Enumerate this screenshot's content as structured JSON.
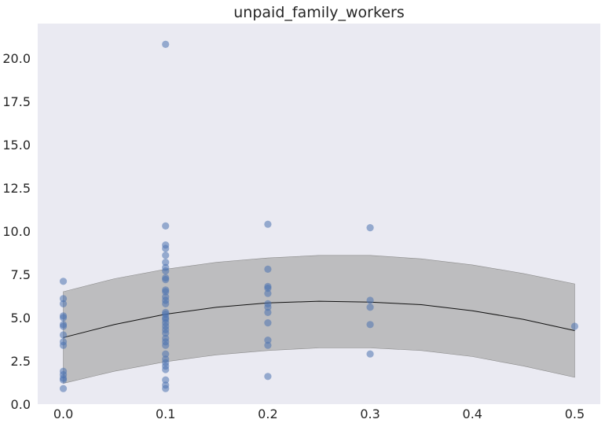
{
  "chart_data": {
    "type": "scatter",
    "title": "unpaid_family_workers",
    "xlabel": "",
    "ylabel": "",
    "xlim": [
      -0.025,
      0.525
    ],
    "ylim": [
      0,
      22
    ],
    "xticks": [
      0.0,
      0.1,
      0.2,
      0.3,
      0.4,
      0.5
    ],
    "xtick_labels": [
      "0.0",
      "0.1",
      "0.2",
      "0.3",
      "0.4",
      "0.5"
    ],
    "yticks": [
      0.0,
      2.5,
      5.0,
      7.5,
      10.0,
      12.5,
      15.0,
      17.5,
      20.0
    ],
    "ytick_labels": [
      "0.0",
      "2.5",
      "5.0",
      "7.5",
      "10.0",
      "12.5",
      "15.0",
      "17.5",
      "20.0"
    ],
    "grid": false,
    "points": [
      [
        0.0,
        7.1
      ],
      [
        0.0,
        6.1
      ],
      [
        0.0,
        5.8
      ],
      [
        0.0,
        5.1
      ],
      [
        0.0,
        5.0
      ],
      [
        0.0,
        4.6
      ],
      [
        0.0,
        4.5
      ],
      [
        0.0,
        4.0
      ],
      [
        0.0,
        3.6
      ],
      [
        0.0,
        3.4
      ],
      [
        0.0,
        1.9
      ],
      [
        0.0,
        1.7
      ],
      [
        0.0,
        1.5
      ],
      [
        0.0,
        1.4
      ],
      [
        0.0,
        0.9
      ],
      [
        0.1,
        20.8
      ],
      [
        0.1,
        10.3
      ],
      [
        0.1,
        9.2
      ],
      [
        0.1,
        9.0
      ],
      [
        0.1,
        8.6
      ],
      [
        0.1,
        8.2
      ],
      [
        0.1,
        7.9
      ],
      [
        0.1,
        7.7
      ],
      [
        0.1,
        7.3
      ],
      [
        0.1,
        7.2
      ],
      [
        0.1,
        6.6
      ],
      [
        0.1,
        6.5
      ],
      [
        0.1,
        6.2
      ],
      [
        0.1,
        6.0
      ],
      [
        0.1,
        5.8
      ],
      [
        0.1,
        5.3
      ],
      [
        0.1,
        5.2
      ],
      [
        0.1,
        5.0
      ],
      [
        0.1,
        4.9
      ],
      [
        0.1,
        4.7
      ],
      [
        0.1,
        4.5
      ],
      [
        0.1,
        4.3
      ],
      [
        0.1,
        4.1
      ],
      [
        0.1,
        3.8
      ],
      [
        0.1,
        3.6
      ],
      [
        0.1,
        3.4
      ],
      [
        0.1,
        2.9
      ],
      [
        0.1,
        2.6
      ],
      [
        0.1,
        2.4
      ],
      [
        0.1,
        2.2
      ],
      [
        0.1,
        2.0
      ],
      [
        0.1,
        1.4
      ],
      [
        0.1,
        1.1
      ],
      [
        0.1,
        0.9
      ],
      [
        0.2,
        10.4
      ],
      [
        0.2,
        7.8
      ],
      [
        0.2,
        6.8
      ],
      [
        0.2,
        6.7
      ],
      [
        0.2,
        6.4
      ],
      [
        0.2,
        5.8
      ],
      [
        0.2,
        5.6
      ],
      [
        0.2,
        5.3
      ],
      [
        0.2,
        4.7
      ],
      [
        0.2,
        3.7
      ],
      [
        0.2,
        3.4
      ],
      [
        0.2,
        1.6
      ],
      [
        0.3,
        10.2
      ],
      [
        0.3,
        6.0
      ],
      [
        0.3,
        5.6
      ],
      [
        0.3,
        4.6
      ],
      [
        0.3,
        2.9
      ],
      [
        0.5,
        4.5
      ]
    ],
    "fit_line": {
      "x": [
        0.0,
        0.05,
        0.1,
        0.15,
        0.2,
        0.25,
        0.3,
        0.35,
        0.4,
        0.45,
        0.5
      ],
      "y": [
        3.85,
        4.6,
        5.2,
        5.6,
        5.85,
        5.95,
        5.9,
        5.75,
        5.4,
        4.9,
        4.25
      ]
    },
    "band": {
      "x": [
        0.0,
        0.05,
        0.1,
        0.15,
        0.2,
        0.25,
        0.3,
        0.35,
        0.4,
        0.45,
        0.5
      ],
      "lower": [
        1.2,
        1.9,
        2.45,
        2.85,
        3.1,
        3.25,
        3.25,
        3.1,
        2.75,
        2.2,
        1.55
      ],
      "upper": [
        6.5,
        7.25,
        7.8,
        8.2,
        8.45,
        8.6,
        8.6,
        8.4,
        8.05,
        7.55,
        6.95
      ]
    },
    "colors": {
      "plot_background": "#eaeaf2",
      "points": "#4c72b0",
      "band": "#a9a9a9",
      "line": "#111111"
    }
  }
}
